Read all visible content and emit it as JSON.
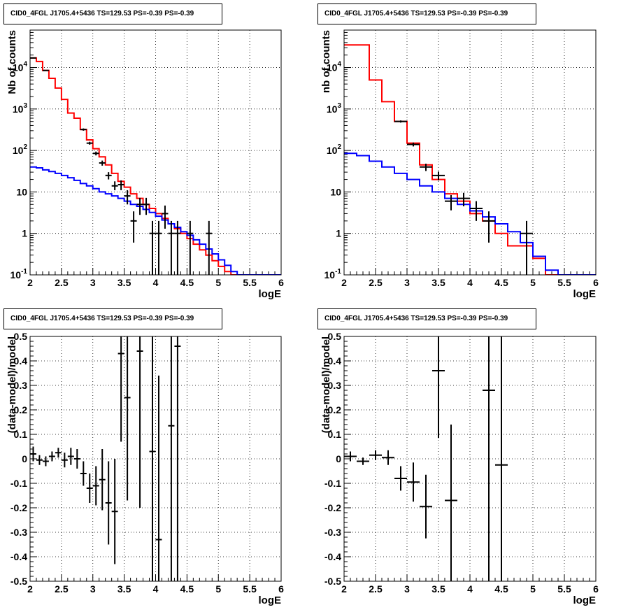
{
  "chart_data": [
    {
      "type": "line",
      "title": "CID0_4FGL J1705.4+5436 TS=129.53 PS=-0.39 PS=-0.39",
      "xlabel": "logE",
      "ylabel": "Nb of counts",
      "xlim": [
        2,
        6
      ],
      "ylim": [
        0.1,
        80000
      ],
      "yscale": "log",
      "grid": true,
      "x_ticks": [
        "2",
        "2.5",
        "3",
        "3.5",
        "4",
        "4.5",
        "5",
        "5.5",
        "6"
      ],
      "y_ticks": [
        "10^-1",
        "1",
        "10",
        "10^2",
        "10^3",
        "10^4"
      ],
      "bin_edges": [
        2.0,
        2.1,
        2.2,
        2.3,
        2.4,
        2.5,
        2.6,
        2.7,
        2.8,
        2.9,
        3.0,
        3.1,
        3.2,
        3.3,
        3.4,
        3.5,
        3.6,
        3.7,
        3.8,
        3.9,
        4.0,
        4.1,
        4.2,
        4.3,
        4.4,
        4.5,
        4.6,
        4.7,
        4.8,
        4.9,
        5.0,
        5.1,
        5.2,
        5.3,
        5.4,
        5.5,
        5.6,
        5.7,
        5.8,
        5.9,
        6.0
      ],
      "series": [
        {
          "name": "",
          "color": "#ff0000",
          "style": "histogram",
          "values": [
            17000,
            14000,
            8500,
            5500,
            3200,
            1700,
            800,
            600,
            320,
            180,
            110,
            70,
            45,
            28,
            18,
            13,
            9,
            7,
            5,
            4,
            3,
            2.3,
            1.7,
            1.3,
            1.0,
            0.75,
            0.55,
            0.4,
            0.3,
            0.22,
            0.16,
            0.12,
            0.1,
            0.1,
            0.1,
            0.1,
            0.1,
            0.1,
            0.1,
            0.1
          ]
        },
        {
          "name": "",
          "color": "#0000ff",
          "style": "histogram",
          "values": [
            40,
            38,
            34,
            31,
            28,
            25,
            22,
            19,
            16,
            14,
            12,
            10,
            9,
            8,
            7,
            6,
            5,
            4.5,
            3.8,
            3.2,
            2.6,
            2.1,
            1.7,
            1.4,
            1.1,
            0.9,
            0.7,
            0.55,
            0.42,
            0.32,
            0.23,
            0.17,
            0.12,
            0.1,
            0.1,
            0.1,
            0.1,
            0.1,
            0.1,
            0.1
          ]
        },
        {
          "name": "",
          "color": "#000000",
          "style": "errorbar",
          "points": [
            {
              "x": 2.05,
              "y": 17000,
              "lo": 16800,
              "hi": 17200
            },
            {
              "x": 2.25,
              "y": 8500,
              "lo": 8300,
              "hi": 8700
            },
            {
              "x": 2.85,
              "y": 320,
              "lo": 300,
              "hi": 340
            },
            {
              "x": 2.95,
              "y": 150,
              "lo": 138,
              "hi": 162
            },
            {
              "x": 3.05,
              "y": 85,
              "lo": 76,
              "hi": 94
            },
            {
              "x": 3.15,
              "y": 50,
              "lo": 43,
              "hi": 57
            },
            {
              "x": 3.25,
              "y": 25,
              "lo": 20,
              "hi": 30
            },
            {
              "x": 3.35,
              "y": 14,
              "lo": 11,
              "hi": 18
            },
            {
              "x": 3.45,
              "y": 15,
              "lo": 11,
              "hi": 19
            },
            {
              "x": 3.55,
              "y": 8,
              "lo": 5,
              "hi": 11
            },
            {
              "x": 3.65,
              "y": 2,
              "lo": 0.6,
              "hi": 3.4
            },
            {
              "x": 3.75,
              "y": 5,
              "lo": 2.8,
              "hi": 7.2
            },
            {
              "x": 3.85,
              "y": 5,
              "lo": 2.8,
              "hi": 7.2
            },
            {
              "x": 3.95,
              "y": 1,
              "lo": 0.1,
              "hi": 2
            },
            {
              "x": 4.05,
              "y": 1,
              "lo": 0.1,
              "hi": 2
            },
            {
              "x": 4.15,
              "y": 3,
              "lo": 1.3,
              "hi": 4.7
            },
            {
              "x": 4.25,
              "y": 1,
              "lo": 0.1,
              "hi": 2
            },
            {
              "x": 4.35,
              "y": 1,
              "lo": 0.1,
              "hi": 2
            },
            {
              "x": 4.55,
              "y": 1,
              "lo": 0.1,
              "hi": 2
            },
            {
              "x": 4.85,
              "y": 1,
              "lo": 0.1,
              "hi": 2
            }
          ],
          "xerr": 0.05
        }
      ]
    },
    {
      "type": "line",
      "title": "CID0_4FGL J1705.4+5436 TS=129.53 PS=-0.39 PS=-0.39",
      "xlabel": "logE",
      "ylabel": "nb of counts",
      "xlim": [
        2,
        6
      ],
      "ylim": [
        0.1,
        80000
      ],
      "yscale": "log",
      "grid": true,
      "x_ticks": [
        "2",
        "2.5",
        "3",
        "3.5",
        "4",
        "4.5",
        "5",
        "5.5",
        "6"
      ],
      "y_ticks": [
        "10^-1",
        "1",
        "10",
        "10^2",
        "10^3",
        "10^4"
      ],
      "bin_edges": [
        2.0,
        2.2,
        2.4,
        2.6,
        2.8,
        3.0,
        3.2,
        3.4,
        3.6,
        3.8,
        4.0,
        4.2,
        4.4,
        4.6,
        4.8,
        5.0,
        5.2,
        5.4,
        5.6,
        5.8,
        6.0
      ],
      "series": [
        {
          "name": "",
          "color": "#ff0000",
          "style": "histogram",
          "values": [
            35000,
            35000,
            5000,
            1500,
            500,
            150,
            45,
            20,
            9,
            6,
            3,
            2,
            1,
            0.5,
            0.5,
            0.25,
            0.1,
            0.1,
            0.1,
            0.1
          ]
        },
        {
          "name": "",
          "color": "#0000ff",
          "style": "histogram",
          "values": [
            85,
            75,
            55,
            40,
            28,
            20,
            14,
            10,
            7,
            5,
            3.5,
            2.5,
            1.7,
            1.1,
            0.6,
            0.28,
            0.13,
            0.1,
            0.1,
            0.1
          ]
        },
        {
          "name": "",
          "color": "#000000",
          "style": "errorbar",
          "points": [
            {
              "x": 2.9,
              "y": 500,
              "lo": 470,
              "hi": 530
            },
            {
              "x": 3.1,
              "y": 140,
              "lo": 125,
              "hi": 155
            },
            {
              "x": 3.3,
              "y": 40,
              "lo": 32,
              "hi": 48
            },
            {
              "x": 3.5,
              "y": 25,
              "lo": 19,
              "hi": 31
            },
            {
              "x": 3.7,
              "y": 6,
              "lo": 3.6,
              "hi": 8.4
            },
            {
              "x": 3.9,
              "y": 7,
              "lo": 4.5,
              "hi": 9.5
            },
            {
              "x": 4.1,
              "y": 4,
              "lo": 2,
              "hi": 6
            },
            {
              "x": 4.3,
              "y": 2,
              "lo": 0.6,
              "hi": 3.4
            },
            {
              "x": 4.9,
              "y": 1,
              "lo": 0.1,
              "hi": 2
            }
          ],
          "xerr": 0.1
        }
      ]
    },
    {
      "type": "scatter",
      "title": "CID0_4FGL J1705.4+5436 TS=129.53 PS=-0.39 PS=-0.39",
      "xlabel": "logE",
      "ylabel": "(data-model)/model",
      "xlim": [
        2,
        6
      ],
      "ylim": [
        -0.5,
        0.5
      ],
      "grid": true,
      "x_ticks": [
        "2",
        "2.5",
        "3",
        "3.5",
        "4",
        "4.5",
        "5",
        "5.5",
        "6"
      ],
      "y_ticks": [
        "-0.5",
        "-0.4",
        "-0.3",
        "-0.2",
        "-0.1",
        "0",
        "0.1",
        "0.2",
        "0.3",
        "0.4",
        "0.5"
      ],
      "series": [
        {
          "name": "",
          "color": "#000000",
          "style": "errorbar",
          "xerr": 0.05,
          "points": [
            {
              "x": 2.05,
              "y": 0.02,
              "lo": -0.01,
              "hi": 0.05
            },
            {
              "x": 2.15,
              "y": -0.005,
              "lo": -0.025,
              "hi": 0.015
            },
            {
              "x": 2.25,
              "y": -0.01,
              "lo": -0.03,
              "hi": 0.01
            },
            {
              "x": 2.35,
              "y": 0.01,
              "lo": -0.01,
              "hi": 0.03
            },
            {
              "x": 2.45,
              "y": 0.025,
              "lo": 0.005,
              "hi": 0.045
            },
            {
              "x": 2.55,
              "y": -0.005,
              "lo": -0.035,
              "hi": 0.025
            },
            {
              "x": 2.65,
              "y": 0.01,
              "lo": -0.025,
              "hi": 0.045
            },
            {
              "x": 2.75,
              "y": 0.0,
              "lo": -0.04,
              "hi": 0.04
            },
            {
              "x": 2.85,
              "y": -0.06,
              "lo": -0.11,
              "hi": -0.01
            },
            {
              "x": 2.95,
              "y": -0.12,
              "lo": -0.18,
              "hi": -0.06
            },
            {
              "x": 3.05,
              "y": -0.11,
              "lo": -0.19,
              "hi": -0.03
            },
            {
              "x": 3.15,
              "y": -0.085,
              "lo": -0.21,
              "hi": 0.04
            },
            {
              "x": 3.25,
              "y": -0.18,
              "lo": -0.35,
              "hi": -0.01
            },
            {
              "x": 3.35,
              "y": -0.215,
              "lo": -0.43,
              "hi": 0.0
            },
            {
              "x": 3.45,
              "y": 0.43,
              "lo": 0.07,
              "hi": 0.5
            },
            {
              "x": 3.55,
              "y": 0.25,
              "lo": -0.17,
              "hi": 0.5
            },
            {
              "x": 3.75,
              "y": 0.44,
              "lo": -0.2,
              "hi": 0.5
            },
            {
              "x": 3.95,
              "y": 0.03,
              "lo": -0.5,
              "hi": 0.5
            },
            {
              "x": 4.05,
              "y": -0.33,
              "lo": -0.5,
              "hi": 0.34
            },
            {
              "x": 4.25,
              "y": 0.135,
              "lo": -0.5,
              "hi": 0.5
            },
            {
              "x": 4.35,
              "y": 0.46,
              "lo": -0.5,
              "hi": 0.5
            }
          ]
        }
      ]
    },
    {
      "type": "scatter",
      "title": "CID0_4FGL J1705.4+5436 TS=129.53 PS=-0.39 PS=-0.39",
      "xlabel": "logE",
      "ylabel": "(data-model)/model",
      "xlim": [
        2,
        6
      ],
      "ylim": [
        -0.5,
        0.5
      ],
      "grid": true,
      "x_ticks": [
        "2",
        "2.5",
        "3",
        "3.5",
        "4",
        "4.5",
        "5",
        "5.5",
        "6"
      ],
      "y_ticks": [
        "-0.5",
        "-0.4",
        "-0.3",
        "-0.2",
        "-0.1",
        "0",
        "0.1",
        "0.2",
        "0.3",
        "0.4",
        "0.5"
      ],
      "series": [
        {
          "name": "",
          "color": "#000000",
          "style": "errorbar",
          "xerr": 0.1,
          "points": [
            {
              "x": 2.1,
              "y": 0.01,
              "lo": -0.01,
              "hi": 0.03
            },
            {
              "x": 2.3,
              "y": -0.01,
              "lo": -0.025,
              "hi": 0.005
            },
            {
              "x": 2.5,
              "y": 0.015,
              "lo": -0.005,
              "hi": 0.035
            },
            {
              "x": 2.7,
              "y": 0.005,
              "lo": -0.025,
              "hi": 0.035
            },
            {
              "x": 2.9,
              "y": -0.08,
              "lo": -0.13,
              "hi": -0.03
            },
            {
              "x": 3.1,
              "y": -0.095,
              "lo": -0.175,
              "hi": -0.015
            },
            {
              "x": 3.3,
              "y": -0.195,
              "lo": -0.325,
              "hi": -0.065
            },
            {
              "x": 3.5,
              "y": 0.36,
              "lo": 0.085,
              "hi": 0.5
            },
            {
              "x": 3.7,
              "y": -0.17,
              "lo": -0.5,
              "hi": 0.14
            },
            {
              "x": 4.3,
              "y": 0.28,
              "lo": -0.5,
              "hi": 0.5
            },
            {
              "x": 4.5,
              "y": -0.025,
              "lo": -0.5,
              "hi": 0.5
            }
          ]
        }
      ]
    }
  ]
}
